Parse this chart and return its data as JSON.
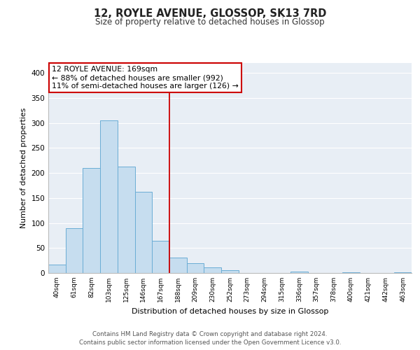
{
  "title": "12, ROYLE AVENUE, GLOSSOP, SK13 7RD",
  "subtitle": "Size of property relative to detached houses in Glossop",
  "xlabel": "Distribution of detached houses by size in Glossop",
  "ylabel": "Number of detached properties",
  "bar_labels": [
    "40sqm",
    "61sqm",
    "82sqm",
    "103sqm",
    "125sqm",
    "146sqm",
    "167sqm",
    "188sqm",
    "209sqm",
    "230sqm",
    "252sqm",
    "273sqm",
    "294sqm",
    "315sqm",
    "336sqm",
    "357sqm",
    "378sqm",
    "400sqm",
    "421sqm",
    "442sqm",
    "463sqm"
  ],
  "bar_values": [
    17,
    90,
    210,
    305,
    213,
    162,
    65,
    31,
    20,
    11,
    5,
    0,
    0,
    0,
    3,
    0,
    0,
    2,
    0,
    0,
    2
  ],
  "bar_color": "#c6ddef",
  "bar_edge_color": "#6aadd5",
  "annotation_text_line1": "12 ROYLE AVENUE: 169sqm",
  "annotation_text_line2": "← 88% of detached houses are smaller (992)",
  "annotation_text_line3": "11% of semi-detached houses are larger (126) →",
  "annotation_box_facecolor": "#ffffff",
  "annotation_box_edgecolor": "#cc0000",
  "vline_color": "#cc0000",
  "ylim": [
    0,
    420
  ],
  "yticks": [
    0,
    50,
    100,
    150,
    200,
    250,
    300,
    350,
    400
  ],
  "background_color": "#e8eef5",
  "grid_color": "#ffffff",
  "footer_line1": "Contains HM Land Registry data © Crown copyright and database right 2024.",
  "footer_line2": "Contains public sector information licensed under the Open Government Licence v3.0."
}
